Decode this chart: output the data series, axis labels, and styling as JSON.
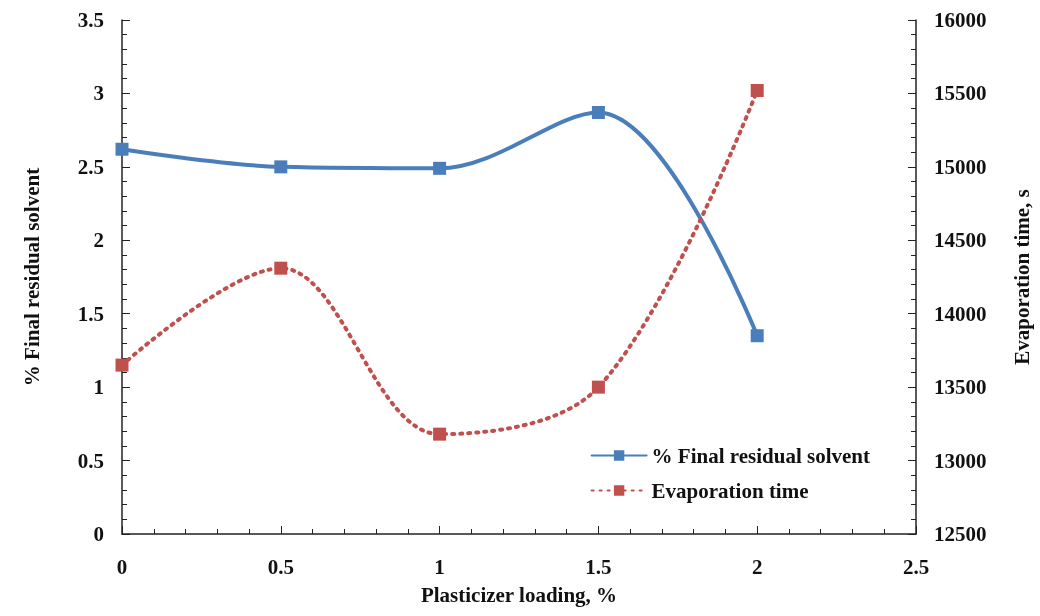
{
  "chart_data": {
    "type": "line",
    "xlabel": "Plasticizer loading, %",
    "ylabel": "% Final residual solvent",
    "y2label": "Evaporation time, s",
    "x": [
      0,
      0.5,
      1,
      1.5,
      2
    ],
    "series": [
      {
        "name": "% Final residual solvent",
        "color": "#4a7ebb",
        "values": [
          2.62,
          2.5,
          2.49,
          2.87,
          1.35
        ],
        "line_style": "solid"
      },
      {
        "name": "Evaporation time",
        "color": "#c0504d",
        "values": [
          13650,
          14310,
          13180,
          13500,
          15520
        ],
        "axis": "y2",
        "line_style": "dotted"
      }
    ],
    "xlim": [
      0,
      2.5
    ],
    "xticks": [
      0,
      0.5,
      1,
      1.5,
      2,
      2.5
    ],
    "ylim": [
      0,
      3.5
    ],
    "yticks": [
      0,
      0.5,
      1,
      1.5,
      2,
      2.5,
      3,
      3.5
    ],
    "y2lim": [
      12500,
      16000
    ],
    "y2ticks": [
      12500,
      13000,
      13500,
      14000,
      14500,
      15000,
      15500,
      16000
    ],
    "marker": "square",
    "grid": false,
    "legend": "bottom right"
  }
}
